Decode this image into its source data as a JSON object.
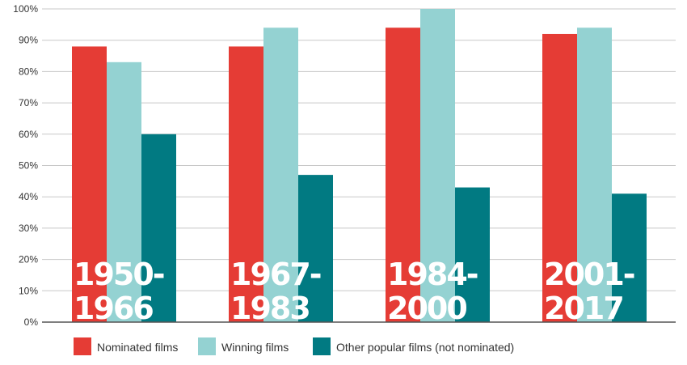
{
  "chart_data": {
    "type": "bar",
    "categories": [
      "1950–1966",
      "1967–1983",
      "1984–2000",
      "2001–2017"
    ],
    "category_labels": [
      [
        "1950-",
        "1966"
      ],
      [
        "1967-",
        "1983"
      ],
      [
        "1984-",
        "2000"
      ],
      [
        "2001-",
        "2017"
      ]
    ],
    "series": [
      {
        "name": "Nominated films",
        "color": "#e53c35",
        "values": [
          88,
          88,
          94,
          92
        ]
      },
      {
        "name": "Winning films",
        "color": "#94d2d2",
        "values": [
          83,
          94,
          100,
          94
        ]
      },
      {
        "name": "Other popular films (not nominated)",
        "color": "#017a82",
        "values": [
          60,
          47,
          43,
          41
        ]
      }
    ],
    "ylim": [
      0,
      100
    ],
    "yticks": [
      0,
      10,
      20,
      30,
      40,
      50,
      60,
      70,
      80,
      90,
      100
    ],
    "ytick_labels": [
      "0%",
      "10%",
      "20%",
      "30%",
      "40%",
      "50%",
      "60%",
      "70%",
      "80%",
      "90%",
      "100%"
    ],
    "grid": true,
    "legend_position": "bottom-left"
  }
}
